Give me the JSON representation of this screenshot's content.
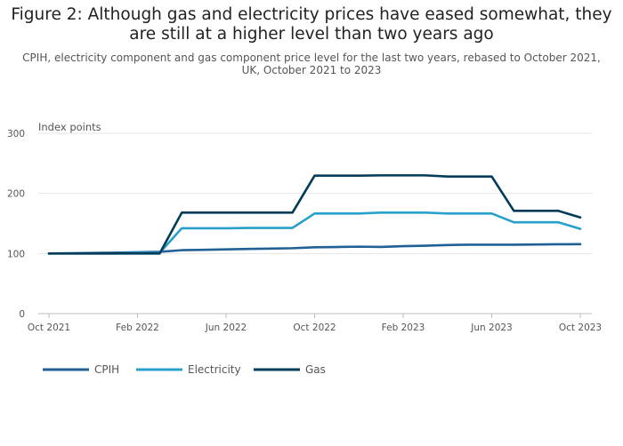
{
  "header": {
    "title": "Figure 2: Although gas and electricity prices have eased somewhat, they are still at a higher level than two years ago",
    "subtitle": "CPIH, electricity component and gas component price level for the last two years, rebased to October 2021, UK, October 2021 to 2023"
  },
  "chart_data": {
    "type": "line",
    "title": "Figure 2: Although gas and electricity prices have eased somewhat, they are still at a higher level than two years ago",
    "ylabel": "Index points",
    "xlabel": "",
    "ylim": [
      0,
      300
    ],
    "yticks": [
      0,
      100,
      200,
      300
    ],
    "ytick_labels": [
      "0",
      "100",
      "200",
      "300"
    ],
    "xticks": [
      0,
      4,
      8,
      12,
      16,
      20,
      24
    ],
    "xtick_labels": [
      "Oct 2021",
      "Feb 2022",
      "Jun 2022",
      "Oct 2022",
      "Feb 2023",
      "Jun 2023",
      "Oct 2023"
    ],
    "categories": [
      "Oct 2021",
      "Nov 2021",
      "Dec 2021",
      "Jan 2022",
      "Feb 2022",
      "Mar 2022",
      "Apr 2022",
      "May 2022",
      "Jun 2022",
      "Jul 2022",
      "Aug 2022",
      "Sep 2022",
      "Oct 2022",
      "Nov 2022",
      "Dec 2022",
      "Jan 2023",
      "Feb 2023",
      "Mar 2023",
      "Apr 2023",
      "May 2023",
      "Jun 2023",
      "Jul 2023",
      "Aug 2023",
      "Sep 2023",
      "Oct 2023"
    ],
    "grid": true,
    "legend_position": "bottom-left",
    "series": [
      {
        "name": "CPIH",
        "color": "#206095",
        "values": [
          100,
          100.5,
          101,
          101.3,
          102,
          102.8,
          105.5,
          106.2,
          106.8,
          107.6,
          108.2,
          108.8,
          110.4,
          110.8,
          111.4,
          111,
          112.2,
          113,
          114.1,
          114.6,
          114.7,
          114.6,
          115,
          115.4,
          115.5
        ]
      },
      {
        "name": "Electricity",
        "color": "#27a0cc",
        "values": [
          100,
          100,
          100,
          100,
          101,
          101,
          142,
          142,
          142,
          142.5,
          142.5,
          142.5,
          166.5,
          166.5,
          166.5,
          168,
          168,
          168,
          166.5,
          166.5,
          166.5,
          152,
          152,
          152,
          141
        ]
      },
      {
        "name": "Gas",
        "color": "#003c57",
        "values": [
          100,
          100,
          100,
          100,
          100,
          100,
          168,
          168,
          168,
          168,
          168,
          168,
          229.5,
          229.5,
          229.5,
          230,
          230,
          230,
          228,
          228,
          228,
          171,
          171,
          171,
          160
        ]
      }
    ]
  }
}
